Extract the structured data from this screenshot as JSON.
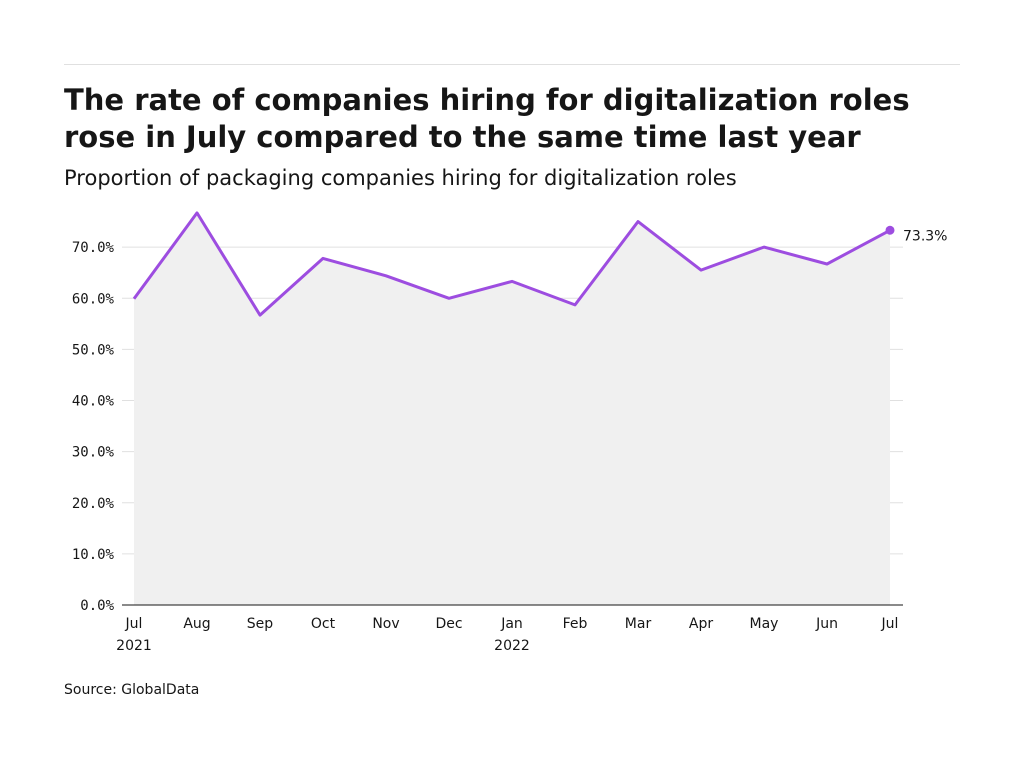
{
  "header": {
    "title": "The rate of companies hiring for digitalization roles rose in July compared to the same time last year",
    "subtitle": "Proportion of packaging companies hiring for digitalization roles"
  },
  "footer": {
    "source": "Source: GlobalData"
  },
  "colors": {
    "line": "#9d4de0",
    "area": "#f0f0f0",
    "grid": "#e0e0e0",
    "axis": "#161616"
  },
  "chart_data": {
    "type": "area",
    "title": "The rate of companies hiring for digitalization roles rose in July compared to the same time last year",
    "subtitle": "Proportion of packaging companies hiring for digitalization roles",
    "categories": [
      "Jul",
      "Aug",
      "Sep",
      "Oct",
      "Nov",
      "Dec",
      "Jan",
      "Feb",
      "Mar",
      "Apr",
      "May",
      "Jun",
      "Jul"
    ],
    "category_years": [
      "2021",
      "",
      "",
      "",
      "",
      "",
      "2022",
      "",
      "",
      "",
      "",
      "",
      ""
    ],
    "series": [
      {
        "values": [
          59.9,
          76.7,
          56.7,
          67.8,
          64.4,
          60.0,
          63.3,
          58.7,
          75.0,
          65.5,
          70.0,
          66.7,
          73.3
        ]
      }
    ],
    "yticks": [
      "0.0%",
      "10.0%",
      "20.0%",
      "30.0%",
      "40.0%",
      "50.0%",
      "60.0%",
      "70.0%"
    ],
    "ylim": [
      0,
      80
    ],
    "grid": true,
    "end_label": "73.3%"
  }
}
